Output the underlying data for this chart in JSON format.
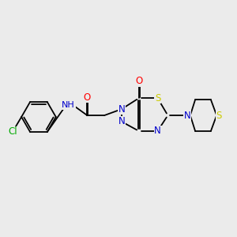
{
  "bg": "#ebebeb",
  "bond_color": "#000000",
  "colors": {
    "N": "#0000cc",
    "O": "#ff0000",
    "S": "#cccc00",
    "Cl": "#00aa00",
    "C": "#000000"
  },
  "fs": 8.5,
  "lw": 1.3,
  "dbl_off": 0.01
}
